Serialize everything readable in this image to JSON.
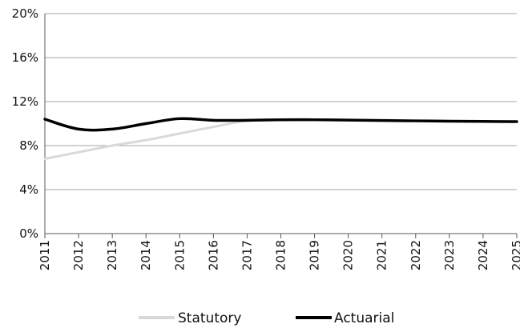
{
  "chart_data": {
    "type": "line",
    "title": "",
    "xlabel": "",
    "ylabel": "",
    "x": [
      2011,
      2012,
      2013,
      2014,
      2015,
      2016,
      2017,
      2018,
      2019,
      2020,
      2021,
      2022,
      2023,
      2024,
      2025
    ],
    "xticks": [
      "2011",
      "2012",
      "2013",
      "2014",
      "2015",
      "2016",
      "2017",
      "2018",
      "2019",
      "2020",
      "2021",
      "2022",
      "2023",
      "2024",
      "2025"
    ],
    "ylim": [
      0,
      20
    ],
    "yticks": [
      0,
      4,
      8,
      12,
      16,
      20
    ],
    "ytick_labels": [
      "0%",
      "4%",
      "8%",
      "12%",
      "16%",
      "20%"
    ],
    "grid": "horizontal",
    "legend_position": "bottom",
    "series": [
      {
        "name": "Statutory",
        "color": "#d9d9d9",
        "values": [
          6.8,
          7.4,
          8.0,
          8.5,
          9.1,
          9.7,
          10.25,
          10.3,
          10.35,
          10.32,
          10.28,
          10.25,
          10.22,
          10.2,
          10.18
        ]
      },
      {
        "name": "Actuarial",
        "color": "#000000",
        "values": [
          10.4,
          9.5,
          9.5,
          10.0,
          10.45,
          10.3,
          10.3,
          10.35,
          10.35,
          10.32,
          10.28,
          10.25,
          10.22,
          10.2,
          10.18
        ]
      }
    ]
  }
}
